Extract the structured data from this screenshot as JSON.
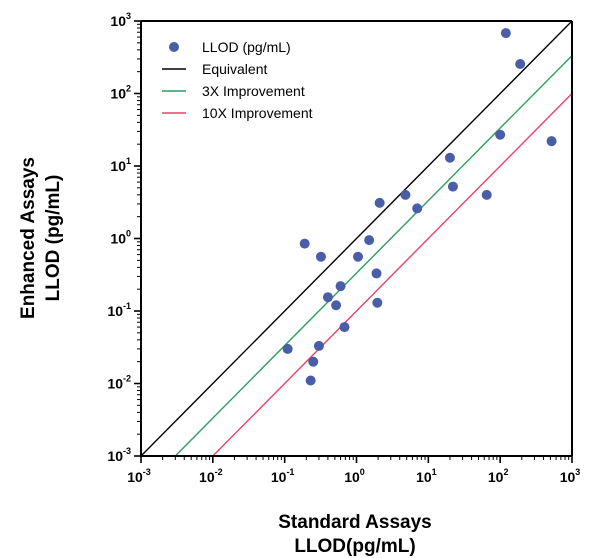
{
  "chart_data": {
    "type": "scatter",
    "xlabel": [
      "Standard Assays",
      "LLOD(pg/mL)"
    ],
    "ylabel": [
      "Enhanced Assays",
      "LLOD (pg/mL)"
    ],
    "x_scale": "log",
    "y_scale": "log",
    "xlim": [
      0.001,
      1000
    ],
    "ylim": [
      0.001,
      1000
    ],
    "x_ticks": [
      {
        "base": "10",
        "exp": "-3"
      },
      {
        "base": "10",
        "exp": "-2"
      },
      {
        "base": "10",
        "exp": "-1"
      },
      {
        "base": "10",
        "exp": "0"
      },
      {
        "base": "10",
        "exp": "1"
      },
      {
        "base": "10",
        "exp": "2"
      },
      {
        "base": "10",
        "exp": "3"
      }
    ],
    "y_ticks": [
      {
        "base": "10",
        "exp": "-3"
      },
      {
        "base": "10",
        "exp": "-2"
      },
      {
        "base": "10",
        "exp": "-1"
      },
      {
        "base": "10",
        "exp": "0"
      },
      {
        "base": "10",
        "exp": "1"
      },
      {
        "base": "10",
        "exp": "2"
      },
      {
        "base": "10",
        "exp": "3"
      }
    ],
    "grid": false,
    "legend_position": "top-left",
    "series": [
      {
        "name": "LLOD (pg/mL)",
        "kind": "points",
        "color": "#4a5ea8",
        "points": [
          {
            "x": 0.11,
            "y": 0.03
          },
          {
            "x": 0.19,
            "y": 0.85
          },
          {
            "x": 0.23,
            "y": 0.011
          },
          {
            "x": 0.25,
            "y": 0.02
          },
          {
            "x": 0.3,
            "y": 0.033
          },
          {
            "x": 0.32,
            "y": 0.56
          },
          {
            "x": 0.4,
            "y": 0.155
          },
          {
            "x": 0.52,
            "y": 0.12
          },
          {
            "x": 0.6,
            "y": 0.22
          },
          {
            "x": 0.68,
            "y": 0.06
          },
          {
            "x": 1.05,
            "y": 0.56
          },
          {
            "x": 1.5,
            "y": 0.95
          },
          {
            "x": 1.9,
            "y": 0.33
          },
          {
            "x": 1.95,
            "y": 0.13
          },
          {
            "x": 2.1,
            "y": 3.1
          },
          {
            "x": 4.8,
            "y": 4.0
          },
          {
            "x": 7.0,
            "y": 2.6
          },
          {
            "x": 20,
            "y": 13
          },
          {
            "x": 22,
            "y": 5.2
          },
          {
            "x": 65,
            "y": 4.0
          },
          {
            "x": 100,
            "y": 27
          },
          {
            "x": 120,
            "y": 680
          },
          {
            "x": 190,
            "y": 255
          },
          {
            "x": 520,
            "y": 22
          }
        ]
      },
      {
        "name": "Equivalent",
        "kind": "line",
        "color": "#000000",
        "factor": 1
      },
      {
        "name": "3X Improvement",
        "kind": "line",
        "color": "#2e9e5e",
        "factor": 3
      },
      {
        "name": "10X Improvement",
        "kind": "line",
        "color": "#e8436a",
        "factor": 10
      }
    ]
  }
}
